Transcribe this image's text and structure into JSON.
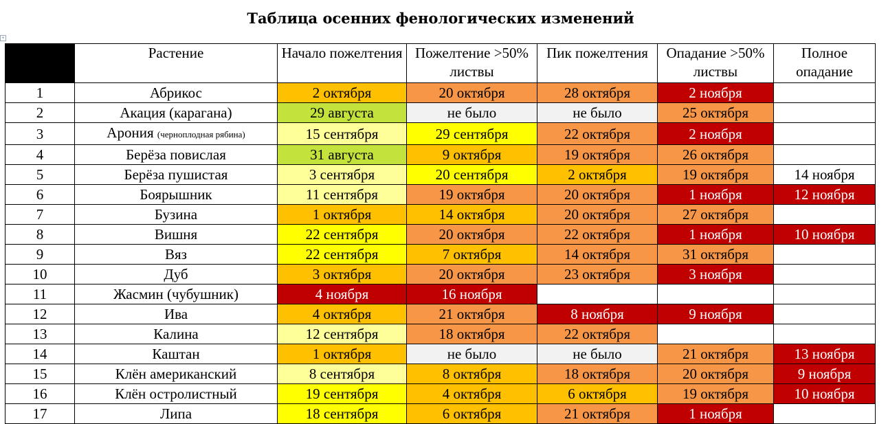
{
  "title": "Таблица осенних фенологических изменений",
  "anchor_glyph": "+",
  "headers": {
    "plant": "Растение",
    "start": "Начало пожелтения",
    "yellow50": "Пожелтение >50% листвы",
    "peak": "Пик пожелтения",
    "fall50": "Опадание >50% листвы",
    "full": "Полное опадание"
  },
  "colors": {
    "green": "#c3e23c",
    "light_yellow": "#ffff99",
    "yellow": "#ffff00",
    "amber": "#ffc000",
    "orange": "#f79646",
    "red": "#c00000",
    "gray": "#f2f2f2"
  },
  "rows": [
    {
      "n": "1",
      "plant": "Абрикос",
      "note": "",
      "start": "2 октября",
      "yellow50": "20 октября",
      "peak": "28 октября",
      "fall50": "2 ноября",
      "full": ""
    },
    {
      "n": "2",
      "plant": "Акация (карагана)",
      "note": "",
      "start": "29 августа",
      "yellow50": "не было",
      "peak": "не было",
      "fall50": "25 октября",
      "full": ""
    },
    {
      "n": "3",
      "plant": "Арония",
      "note": "(черноплодная рябина)",
      "start": "15 сентября",
      "yellow50": "29 сентября",
      "peak": "22 октября",
      "fall50": "2 ноября",
      "full": ""
    },
    {
      "n": "4",
      "plant": "Берёза повислая",
      "note": "",
      "start": "31 августа",
      "yellow50": "9 октября",
      "peak": "19 октября",
      "fall50": "26 октября",
      "full": ""
    },
    {
      "n": "5",
      "plant": "Берёза пушистая",
      "note": "",
      "start": "3 сентября",
      "yellow50": "20 сентября",
      "peak": "2 октября",
      "fall50": "19 октября",
      "full": "14 ноября"
    },
    {
      "n": "6",
      "plant": "Боярышник",
      "note": "",
      "start": "11 сентября",
      "yellow50": "19 октября",
      "peak": "20 октября",
      "fall50": "1 ноября",
      "full": "12 ноября"
    },
    {
      "n": "7",
      "plant": "Бузина",
      "note": "",
      "start": "1 октября",
      "yellow50": "14 октября",
      "peak": "20 октября",
      "fall50": "27 октября",
      "full": ""
    },
    {
      "n": "8",
      "plant": "Вишня",
      "note": "",
      "start": "22 сентября",
      "yellow50": "20 октября",
      "peak": "22 октября",
      "fall50": "1 ноября",
      "full": "10 ноября"
    },
    {
      "n": "9",
      "plant": "Вяз",
      "note": "",
      "start": "22 сентября",
      "yellow50": "7 октября",
      "peak": "14 октября",
      "fall50": "31 октября",
      "full": ""
    },
    {
      "n": "10",
      "plant": "Дуб",
      "note": "",
      "start": "3 октября",
      "yellow50": "20 октября",
      "peak": "23 октября",
      "fall50": "3 ноября",
      "full": ""
    },
    {
      "n": "11",
      "plant": "Жасмин (чубушник)",
      "note": "",
      "start": "4 ноября",
      "yellow50": "16 ноября",
      "peak": "",
      "fall50": "",
      "full": ""
    },
    {
      "n": "12",
      "plant": "Ива",
      "note": "",
      "start": "4 октября",
      "yellow50": "21 октября",
      "peak": "8 ноября",
      "fall50": "9 ноября",
      "full": ""
    },
    {
      "n": "13",
      "plant": "Калина",
      "note": "",
      "start": "12 сентября",
      "yellow50": "18 октября",
      "peak": "22 октября",
      "fall50": "",
      "full": ""
    },
    {
      "n": "14",
      "plant": "Каштан",
      "note": "",
      "start": "1 октября",
      "yellow50": "не было",
      "peak": "не было",
      "fall50": "21 октября",
      "full": "13 ноября"
    },
    {
      "n": "15",
      "plant": "Клён американский",
      "note": "",
      "start": "8 сентября",
      "yellow50": "8 октября",
      "peak": "18 октября",
      "fall50": "20 октября",
      "full": "9 ноября"
    },
    {
      "n": "16",
      "plant": "Клён остролистный",
      "note": "",
      "start": "19 сентября",
      "yellow50": "4 октября",
      "peak": "6 октября",
      "fall50": "19 октября",
      "full": "10 ноября"
    },
    {
      "n": "17",
      "plant": "Липа",
      "note": "",
      "start": "18 сентября",
      "yellow50": "6 октября",
      "peak": "21 октября",
      "fall50": "1 ноября",
      "full": ""
    }
  ],
  "row_colors": [
    {
      "start": "amber",
      "yellow50": "orange",
      "peak": "orange",
      "fall50": "red",
      "full": ""
    },
    {
      "start": "green",
      "yellow50": "gray",
      "peak": "gray",
      "fall50": "orange",
      "full": ""
    },
    {
      "start": "light_yellow",
      "yellow50": "yellow",
      "peak": "orange",
      "fall50": "red",
      "full": ""
    },
    {
      "start": "green",
      "yellow50": "amber",
      "peak": "orange",
      "fall50": "orange",
      "full": ""
    },
    {
      "start": "light_yellow",
      "yellow50": "yellow",
      "peak": "amber",
      "fall50": "orange",
      "full": ""
    },
    {
      "start": "light_yellow",
      "yellow50": "orange",
      "peak": "orange",
      "fall50": "red",
      "full": "red"
    },
    {
      "start": "amber",
      "yellow50": "amber",
      "peak": "orange",
      "fall50": "orange",
      "full": ""
    },
    {
      "start": "yellow",
      "yellow50": "orange",
      "peak": "orange",
      "fall50": "red",
      "full": "red"
    },
    {
      "start": "yellow",
      "yellow50": "amber",
      "peak": "orange",
      "fall50": "orange",
      "full": ""
    },
    {
      "start": "amber",
      "yellow50": "orange",
      "peak": "orange",
      "fall50": "red",
      "full": ""
    },
    {
      "start": "red",
      "yellow50": "red",
      "peak": "",
      "fall50": "",
      "full": ""
    },
    {
      "start": "amber",
      "yellow50": "orange",
      "peak": "red",
      "fall50": "red",
      "full": ""
    },
    {
      "start": "light_yellow",
      "yellow50": "orange",
      "peak": "orange",
      "fall50": "",
      "full": ""
    },
    {
      "start": "amber",
      "yellow50": "gray",
      "peak": "gray",
      "fall50": "orange",
      "full": "red"
    },
    {
      "start": "light_yellow",
      "yellow50": "amber",
      "peak": "orange",
      "fall50": "orange",
      "full": "red"
    },
    {
      "start": "yellow",
      "yellow50": "amber",
      "peak": "amber",
      "fall50": "orange",
      "full": "red"
    },
    {
      "start": "yellow",
      "yellow50": "amber",
      "peak": "orange",
      "fall50": "red",
      "full": ""
    }
  ]
}
